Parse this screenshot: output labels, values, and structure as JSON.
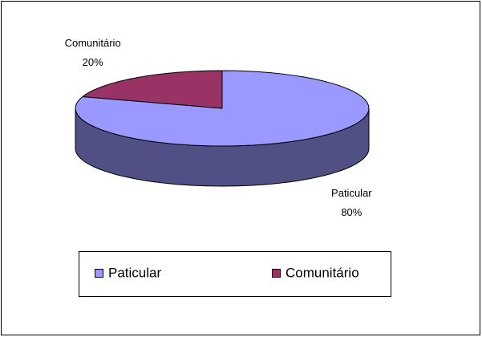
{
  "chart_data": {
    "type": "pie",
    "categories": [
      "Paticular",
      "Comunitário"
    ],
    "values": [
      80,
      20
    ],
    "value_labels": [
      "80%",
      "20%"
    ],
    "colors": [
      "#9999ff",
      "#993366"
    ],
    "legend": "bottom"
  }
}
